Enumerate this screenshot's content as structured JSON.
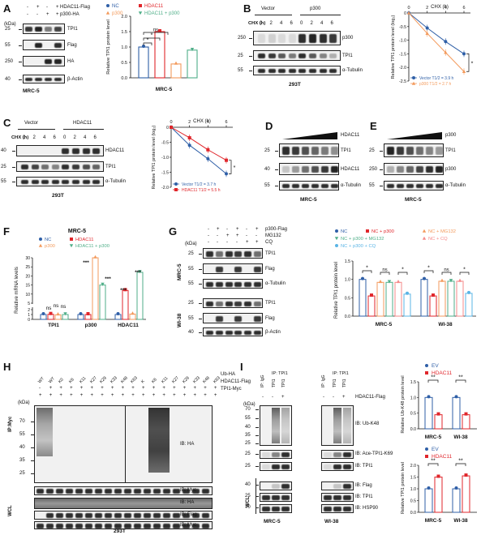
{
  "colors": {
    "blue": "#2f5fa7",
    "red": "#e0262b",
    "orange": "#f39a5c",
    "green": "#4fae88",
    "lightblue": "#5ab4e5",
    "pink": "#f58a8a"
  },
  "panels": {
    "A": {
      "letter": "A",
      "rows": [
        "HDAC11-Flag",
        "p300-HA"
      ],
      "signs": [
        [
          "-",
          "+",
          "-",
          "+"
        ],
        [
          "-",
          "-",
          "+",
          "+"
        ]
      ],
      "kda": "(kDa)",
      "markers": [
        "25",
        "55",
        "250",
        "40"
      ],
      "blots": [
        "TPI1",
        "Flag",
        "HA",
        "β-Actin"
      ],
      "cell": "MRC-5",
      "legend": [
        "NC",
        "HDAC11",
        "p300",
        "HDAC11 + p300"
      ],
      "ylabel": "Relative TPI1 protein level",
      "xlabel": "MRC-5",
      "sig": [
        "ns",
        "*",
        "*"
      ]
    },
    "B": {
      "letter": "B",
      "groups": [
        "Vector",
        "p300"
      ],
      "chx_label": "CHX (h)",
      "times": [
        "0",
        "2",
        "4",
        "6",
        "0",
        "2",
        "4",
        "6"
      ],
      "markers": [
        "250",
        "25",
        "55"
      ],
      "blots": [
        "p300",
        "TPI1",
        "α-Tubulin"
      ],
      "cell": "293T",
      "chart_title": "CHX (h)",
      "ylabel": "Relative TPI1 protein level (log₂)",
      "legend": [
        "Vector  T1/2 = 3.9 h",
        "p300  T1/2 = 2.7 h"
      ],
      "sig": "*"
    },
    "C": {
      "letter": "C",
      "groups": [
        "Vector",
        "HDAC11"
      ],
      "chx_label": "CHX (h)",
      "times": [
        "0",
        "2",
        "4",
        "6",
        "0",
        "2",
        "4",
        "6"
      ],
      "markers": [
        "40",
        "25",
        "55"
      ],
      "blots": [
        "HDAC11",
        "TPI1",
        "α-Tubulin"
      ],
      "cell": "293T",
      "chart_title": "CHX (h)",
      "ylabel": "Relative TPI1 protein level (log₂)",
      "legend": [
        "Vector  T1/2 = 3.7 h",
        "HDAC11  T1/2 = 5.5 h"
      ],
      "sig": "*"
    },
    "D": {
      "letter": "D",
      "treat": "HDAC11",
      "markers": [
        "25",
        "40",
        "55"
      ],
      "blots": [
        "TPI1",
        "HDAC11",
        "α-Tubulin"
      ],
      "cell": "MRC-5"
    },
    "E": {
      "letter": "E",
      "treat": "p300",
      "markers": [
        "25",
        "250",
        "55"
      ],
      "blots": [
        "TPI1",
        "p300",
        "α-Tubulin"
      ],
      "cell": "MRC-5"
    },
    "F": {
      "letter": "F",
      "title": "MRC-5",
      "legend": [
        "NC",
        "HDAC11",
        "p300",
        "HDAC11 + p300"
      ],
      "ylabel": "Relative mRNA levels",
      "xcats": [
        "TPI1",
        "p300",
        "HDAC11"
      ],
      "sig": [
        "ns",
        "ns",
        "ns",
        "***",
        "***",
        "***",
        "***"
      ]
    },
    "G": {
      "letter": "G",
      "rows": [
        "p300-Flag",
        "MG132",
        "CQ"
      ],
      "signs": [
        [
          "-",
          "+",
          "-",
          "+",
          "-",
          "+"
        ],
        [
          "-",
          "-",
          "+",
          "+",
          "-",
          "-"
        ],
        [
          "-",
          "-",
          "-",
          "-",
          "+",
          "+"
        ]
      ],
      "kda": "(kDa)",
      "markers1": [
        "25",
        "55",
        "55"
      ],
      "blots1": [
        "TPI1",
        "Flag",
        "α-Tubulin"
      ],
      "cell1": "MRC-5",
      "markers2": [
        "25",
        "55",
        "40"
      ],
      "blots2": [
        "TPI1",
        "Flag",
        "β-Actin"
      ],
      "cell2": "WI-38",
      "legend": [
        "NC",
        "NC + p300",
        "NC + MG132",
        "NC + p300 + MG132",
        "NC + CQ",
        "NC + p300 + CQ"
      ],
      "ylabel": "Relative TPI1 protein level",
      "xcats": [
        "MRC-5",
        "WI-38"
      ],
      "sig": [
        "*",
        "ns",
        "*",
        "*",
        "ns",
        "*"
      ]
    },
    "H": {
      "letter": "H",
      "lanes": [
        "WT",
        "WT",
        "K0",
        "K6",
        "K11",
        "K27",
        "K29",
        "K33",
        "K48",
        "K63",
        "K",
        "K6",
        "K11",
        "K27",
        "K29",
        "K33",
        "K48",
        "K63"
      ],
      "rows": [
        "Ub-HA",
        "HDAC11-Flag",
        "TPI1-Myc"
      ],
      "kda": "(kDa)",
      "markers_ip": [
        "70",
        "55",
        "40",
        "35",
        "25"
      ],
      "ip_label": "IP:Myc",
      "ip_blots": [
        "IB: HA",
        "IB: Myc"
      ],
      "wcl_label": "WCL",
      "markers_wcl": [
        "70",
        "55",
        "40",
        "25",
        "40",
        "25"
      ],
      "wcl_blots": [
        "IB: HA",
        "IB: Flag",
        "IB: Myc"
      ],
      "cell": "293T"
    },
    "I": {
      "letter": "I",
      "ip_header": [
        "IP: IgG",
        "IP: TPI1"
      ],
      "lane_labels": [
        "IP: IgG",
        "TPI1",
        "TPI1"
      ],
      "row": "HDAC11-Flag",
      "signs": [
        "-",
        "-",
        "+"
      ],
      "kda": "(kDa)",
      "blots": [
        "IB: Ub-K48",
        "IB: Ace-TPI1-K69",
        "IB: TPI1"
      ],
      "wcl_label": "WCL",
      "wcl_blots": [
        "IB: Flag",
        "IB: TPI1",
        "IB: HSP90"
      ],
      "markers": [
        "70",
        "55",
        "40",
        "35",
        "25",
        "25",
        "25",
        "40",
        "25",
        "70"
      ],
      "cells": [
        "MRC-5",
        "WI-38"
      ],
      "chart1": {
        "legend": [
          "EV",
          "HDAC11"
        ],
        "ylabel": "Relative Ub-K48 protein level",
        "xcats": [
          "MRC-5",
          "WI-38"
        ],
        "sig": [
          "**",
          "**"
        ]
      },
      "chart2": {
        "legend": [
          "EV",
          "HDAC11"
        ],
        "ylabel": "Relative TPI1 protein level",
        "xcats": [
          "MRC-5",
          "WI-38"
        ],
        "sig": [
          "**",
          "**"
        ]
      }
    }
  },
  "chart_data": [
    {
      "panel": "A",
      "type": "bar",
      "categories": [
        "NC",
        "HDAC11",
        "p300",
        "HDAC11 + p300"
      ],
      "values": [
        1.0,
        1.5,
        0.45,
        0.9
      ],
      "xlabel": "MRC-5",
      "ylabel": "Relative TPI1 protein level",
      "ylim": [
        0,
        2.0
      ]
    },
    {
      "panel": "B",
      "type": "line",
      "x": [
        0,
        2,
        4,
        6
      ],
      "series": [
        {
          "name": "Vector",
          "values": [
            0,
            -0.55,
            -1.05,
            -1.5
          ]
        },
        {
          "name": "p300",
          "values": [
            0,
            -0.75,
            -1.45,
            -2.15
          ]
        }
      ],
      "xlabel": "CHX (h)",
      "ylabel": "Relative TPI1 protein level (log₂)",
      "ylim": [
        -2.5,
        0
      ]
    },
    {
      "panel": "C",
      "type": "line",
      "x": [
        0,
        2,
        4,
        6
      ],
      "series": [
        {
          "name": "Vector",
          "values": [
            0,
            -0.6,
            -1.05,
            -1.55
          ]
        },
        {
          "name": "HDAC11",
          "values": [
            0,
            -0.35,
            -0.75,
            -1.1
          ]
        }
      ],
      "xlabel": "CHX (h)",
      "ylabel": "Relative TPI1 protein level (log₂)",
      "ylim": [
        -2.0,
        0
      ]
    },
    {
      "panel": "F",
      "type": "bar",
      "categories": [
        "TPI1",
        "p300",
        "HDAC11"
      ],
      "series": [
        {
          "name": "NC",
          "values": [
            1,
            1,
            1
          ]
        },
        {
          "name": "HDAC11",
          "values": [
            1.05,
            1.0,
            12
          ]
        },
        {
          "name": "p300",
          "values": [
            0.95,
            30,
            1.1
          ]
        },
        {
          "name": "HDAC11 + p300",
          "values": [
            1.0,
            15,
            22
          ]
        }
      ],
      "ylabel": "Relative mRNA levels"
    },
    {
      "panel": "G",
      "type": "bar",
      "categories": [
        "MRC-5",
        "WI-38"
      ],
      "series": [
        {
          "name": "NC",
          "values": [
            1.0,
            1.0
          ]
        },
        {
          "name": "NC + p300",
          "values": [
            0.55,
            0.55
          ]
        },
        {
          "name": "NC + MG132",
          "values": [
            0.92,
            0.95
          ]
        },
        {
          "name": "NC + p300 + MG132",
          "values": [
            0.92,
            0.95
          ]
        },
        {
          "name": "NC + CQ",
          "values": [
            0.92,
            0.95
          ]
        },
        {
          "name": "NC + p300 + CQ",
          "values": [
            0.6,
            0.62
          ]
        }
      ],
      "ylabel": "Relative TPI1 protein level",
      "ylim": [
        0,
        1.5
      ]
    },
    {
      "panel": "I1",
      "type": "bar",
      "categories": [
        "MRC-5",
        "WI-38"
      ],
      "series": [
        {
          "name": "EV",
          "values": [
            1.0,
            1.0
          ]
        },
        {
          "name": "HDAC11",
          "values": [
            0.45,
            0.45
          ]
        }
      ],
      "ylabel": "Relative Ub-K48 protein level",
      "ylim": [
        0,
        1.5
      ]
    },
    {
      "panel": "I2",
      "type": "bar",
      "categories": [
        "MRC-5",
        "WI-38"
      ],
      "series": [
        {
          "name": "EV",
          "values": [
            1.0,
            1.0
          ]
        },
        {
          "name": "HDAC11",
          "values": [
            1.5,
            1.55
          ]
        }
      ],
      "ylabel": "Relative TPI1 protein level",
      "ylim": [
        0,
        2.0
      ]
    }
  ]
}
